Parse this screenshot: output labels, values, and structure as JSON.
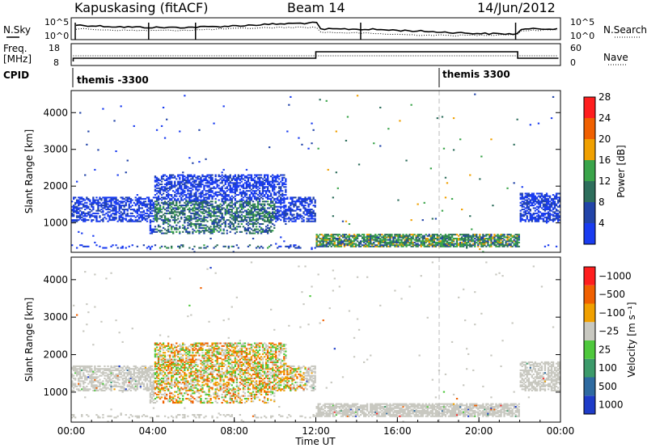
{
  "header": {
    "site": "Kapuskasing (fitACF)",
    "beam": "Beam 14",
    "date": "14/Jun/2012"
  },
  "summary": {
    "nsky_label": "N.Sky",
    "nsearch_label": "N.Search",
    "freq_label_1": "Freq.",
    "freq_label_2": "[MHz]",
    "nave_label": "Nave",
    "cpid_label": "CPID",
    "sky_ticks": [
      "10^5",
      "10^0"
    ],
    "freq_ticks": [
      "18",
      "8"
    ],
    "nave_ticks": [
      "60",
      "0"
    ],
    "cpid_segments": [
      "themis -3300",
      "themis 3300"
    ]
  },
  "chart_data": [
    {
      "type": "heatmap",
      "parameter": "Power",
      "colorbar_label": "Power [dB]",
      "colorbar_ticks": [
        "4",
        "8",
        "12",
        "16",
        "20",
        "24",
        "28"
      ],
      "colorbar_colors": [
        "#1a3cf0",
        "#2244a8",
        "#2e6e5c",
        "#3aa44a",
        "#f0a000",
        "#f06000",
        "#ff1e1e"
      ],
      "ylabel": "Slant Range [km]",
      "yticks": [
        "1000",
        "2000",
        "3000",
        "4000"
      ],
      "ylim": [
        200,
        4600
      ],
      "xlim": [
        0,
        24
      ]
    },
    {
      "type": "heatmap",
      "parameter": "Velocity",
      "colorbar_label": "Velocity [m s⁻¹]",
      "colorbar_ticks": [
        "1000",
        "500",
        "100",
        "25",
        "−25",
        "−100",
        "−500",
        "−1000"
      ],
      "colorbar_colors": [
        "#1e3cc8",
        "#2e6aa0",
        "#3c9a6a",
        "#4ec83c",
        "#c8c8c0",
        "#f0a000",
        "#f06000",
        "#ff1e1e"
      ],
      "ylabel": "Slant Range [km]",
      "yticks": [
        "1000",
        "2000",
        "3000",
        "4000"
      ],
      "ylim": [
        200,
        4600
      ],
      "xlim": [
        0,
        24
      ]
    }
  ],
  "xaxis": {
    "label": "Time UT",
    "ticks": [
      "00:00",
      "04:00",
      "08:00",
      "12:00",
      "16:00",
      "20:00",
      "00:00"
    ]
  },
  "colors": {
    "scatter_bg": "#ffffff",
    "ground_scatter": "#c8c8c0"
  }
}
